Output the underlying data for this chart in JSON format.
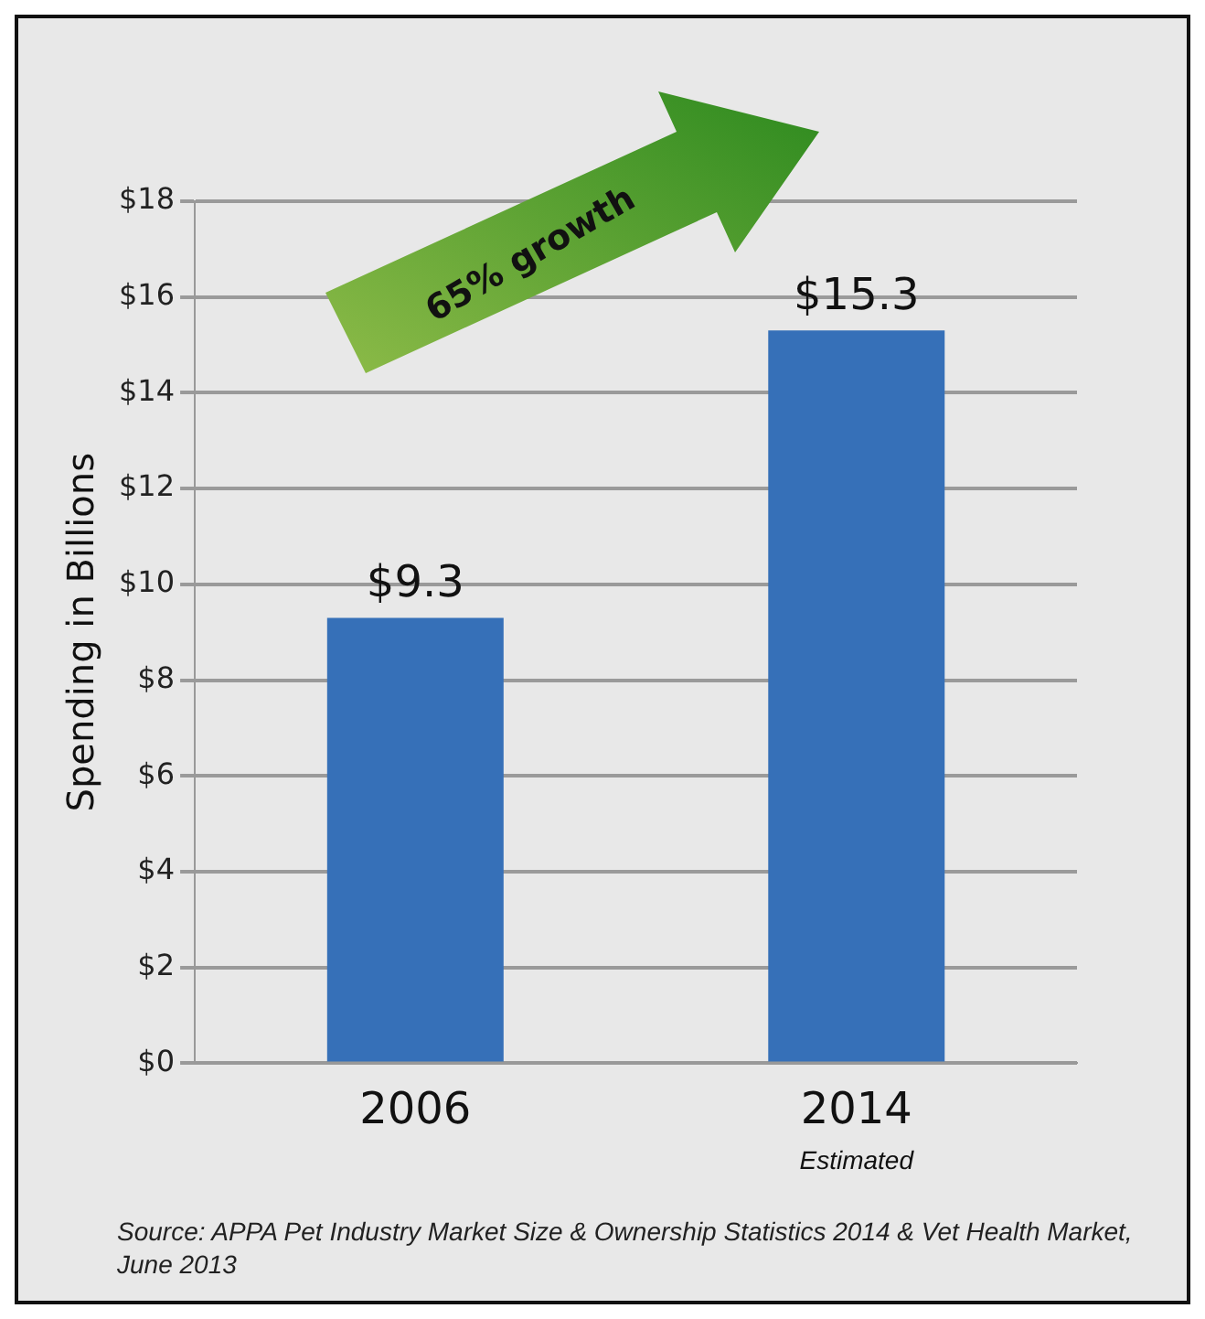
{
  "chart_data": {
    "type": "bar",
    "ylabel": "Spending in Billions",
    "categories": [
      "2006",
      "2014"
    ],
    "values": [
      9.3,
      15.3
    ],
    "value_labels": [
      "$9.3",
      "$15.3"
    ],
    "color": "#3670b8",
    "ylim": [
      0,
      18
    ],
    "yticks": [
      {
        "value": 0,
        "label": "$0"
      },
      {
        "value": 2,
        "label": "$2"
      },
      {
        "value": 4,
        "label": "$4"
      },
      {
        "value": 6,
        "label": "$6"
      },
      {
        "value": 8,
        "label": "$8"
      },
      {
        "value": 10,
        "label": "$10"
      },
      {
        "value": 12,
        "label": "$12"
      },
      {
        "value": 14,
        "label": "$14"
      },
      {
        "value": 16,
        "label": "$16"
      },
      {
        "value": 18,
        "label": "$18"
      }
    ],
    "grid": "y",
    "legend": false,
    "annotations": [
      "Estimated",
      "65% growth",
      "Source: APPA Pet Industry Market Size & Ownership Statistics 2014 & Vet Health Market, June 2013"
    ]
  }
}
